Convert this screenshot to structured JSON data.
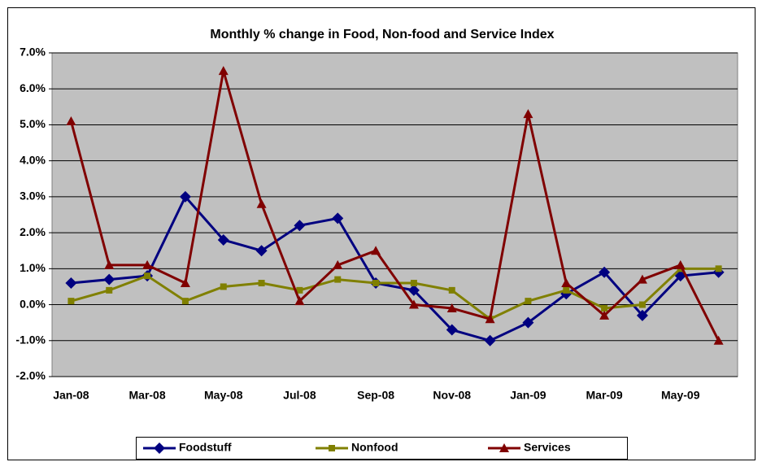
{
  "chart_data": {
    "type": "line",
    "title": "Monthly % change in Food, Non-food and Service Index",
    "categories": [
      "Jan-08",
      null,
      "Mar-08",
      null,
      "May-08",
      null,
      "Jul-08",
      null,
      "Sep-08",
      null,
      "Nov-08",
      null,
      "Jan-09",
      null,
      "Mar-09",
      null,
      "May-09",
      null
    ],
    "series": [
      {
        "name": "Foodstuff",
        "color": "#000080",
        "marker": "diamond",
        "values": [
          0.6,
          0.7,
          0.8,
          3.0,
          1.8,
          1.5,
          2.2,
          2.4,
          0.6,
          0.4,
          -0.7,
          -1.0,
          -0.5,
          0.3,
          0.9,
          -0.3,
          0.8,
          0.9
        ]
      },
      {
        "name": "Nonfood",
        "color": "#808000",
        "marker": "square",
        "values": [
          0.1,
          0.4,
          0.8,
          0.1,
          0.5,
          0.6,
          0.4,
          0.7,
          0.6,
          0.6,
          0.4,
          -0.4,
          0.1,
          0.4,
          -0.1,
          0.0,
          1.0,
          1.0
        ]
      },
      {
        "name": "Services",
        "color": "#800000",
        "marker": "triangle",
        "values": [
          5.1,
          1.1,
          1.1,
          0.6,
          6.5,
          2.8,
          0.1,
          1.1,
          1.5,
          0.0,
          -0.1,
          -0.4,
          5.3,
          0.6,
          -0.3,
          0.7,
          1.1,
          -1.0
        ]
      }
    ],
    "ylim": [
      -2,
      7
    ],
    "yticks": [
      {
        "value": -2,
        "label": "-2.0%"
      },
      {
        "value": -1,
        "label": "-1.0%"
      },
      {
        "value": 0,
        "label": "0.0%"
      },
      {
        "value": 1,
        "label": "1.0%"
      },
      {
        "value": 2,
        "label": "2.0%"
      },
      {
        "value": 3,
        "label": "3.0%"
      },
      {
        "value": 4,
        "label": "4.0%"
      },
      {
        "value": 5,
        "label": "5.0%"
      },
      {
        "value": 6,
        "label": "6.0%"
      },
      {
        "value": 7,
        "label": "7.0%"
      }
    ],
    "grid": true,
    "legend": "bottom"
  }
}
